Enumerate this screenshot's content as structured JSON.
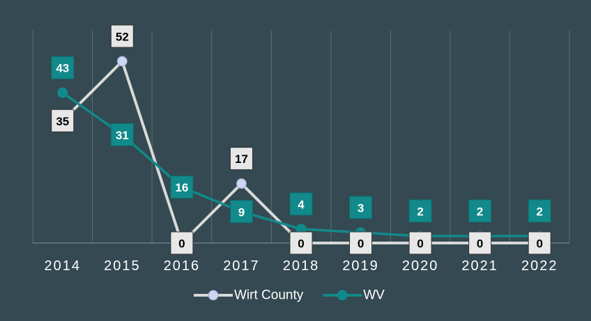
{
  "chart_data": {
    "type": "line",
    "categories": [
      "2014",
      "2015",
      "2016",
      "2017",
      "2018",
      "2019",
      "2020",
      "2021",
      "2022"
    ],
    "series": [
      {
        "name": "Wirt County",
        "color": "#d9d9d9",
        "values": [
          35,
          52,
          0,
          17,
          0,
          0,
          0,
          0,
          0
        ]
      },
      {
        "name": "WV",
        "color": "#12898a",
        "values": [
          43,
          31,
          16,
          9,
          4,
          3,
          2,
          2,
          2
        ]
      }
    ],
    "grid": true,
    "legend": "bottom"
  }
}
